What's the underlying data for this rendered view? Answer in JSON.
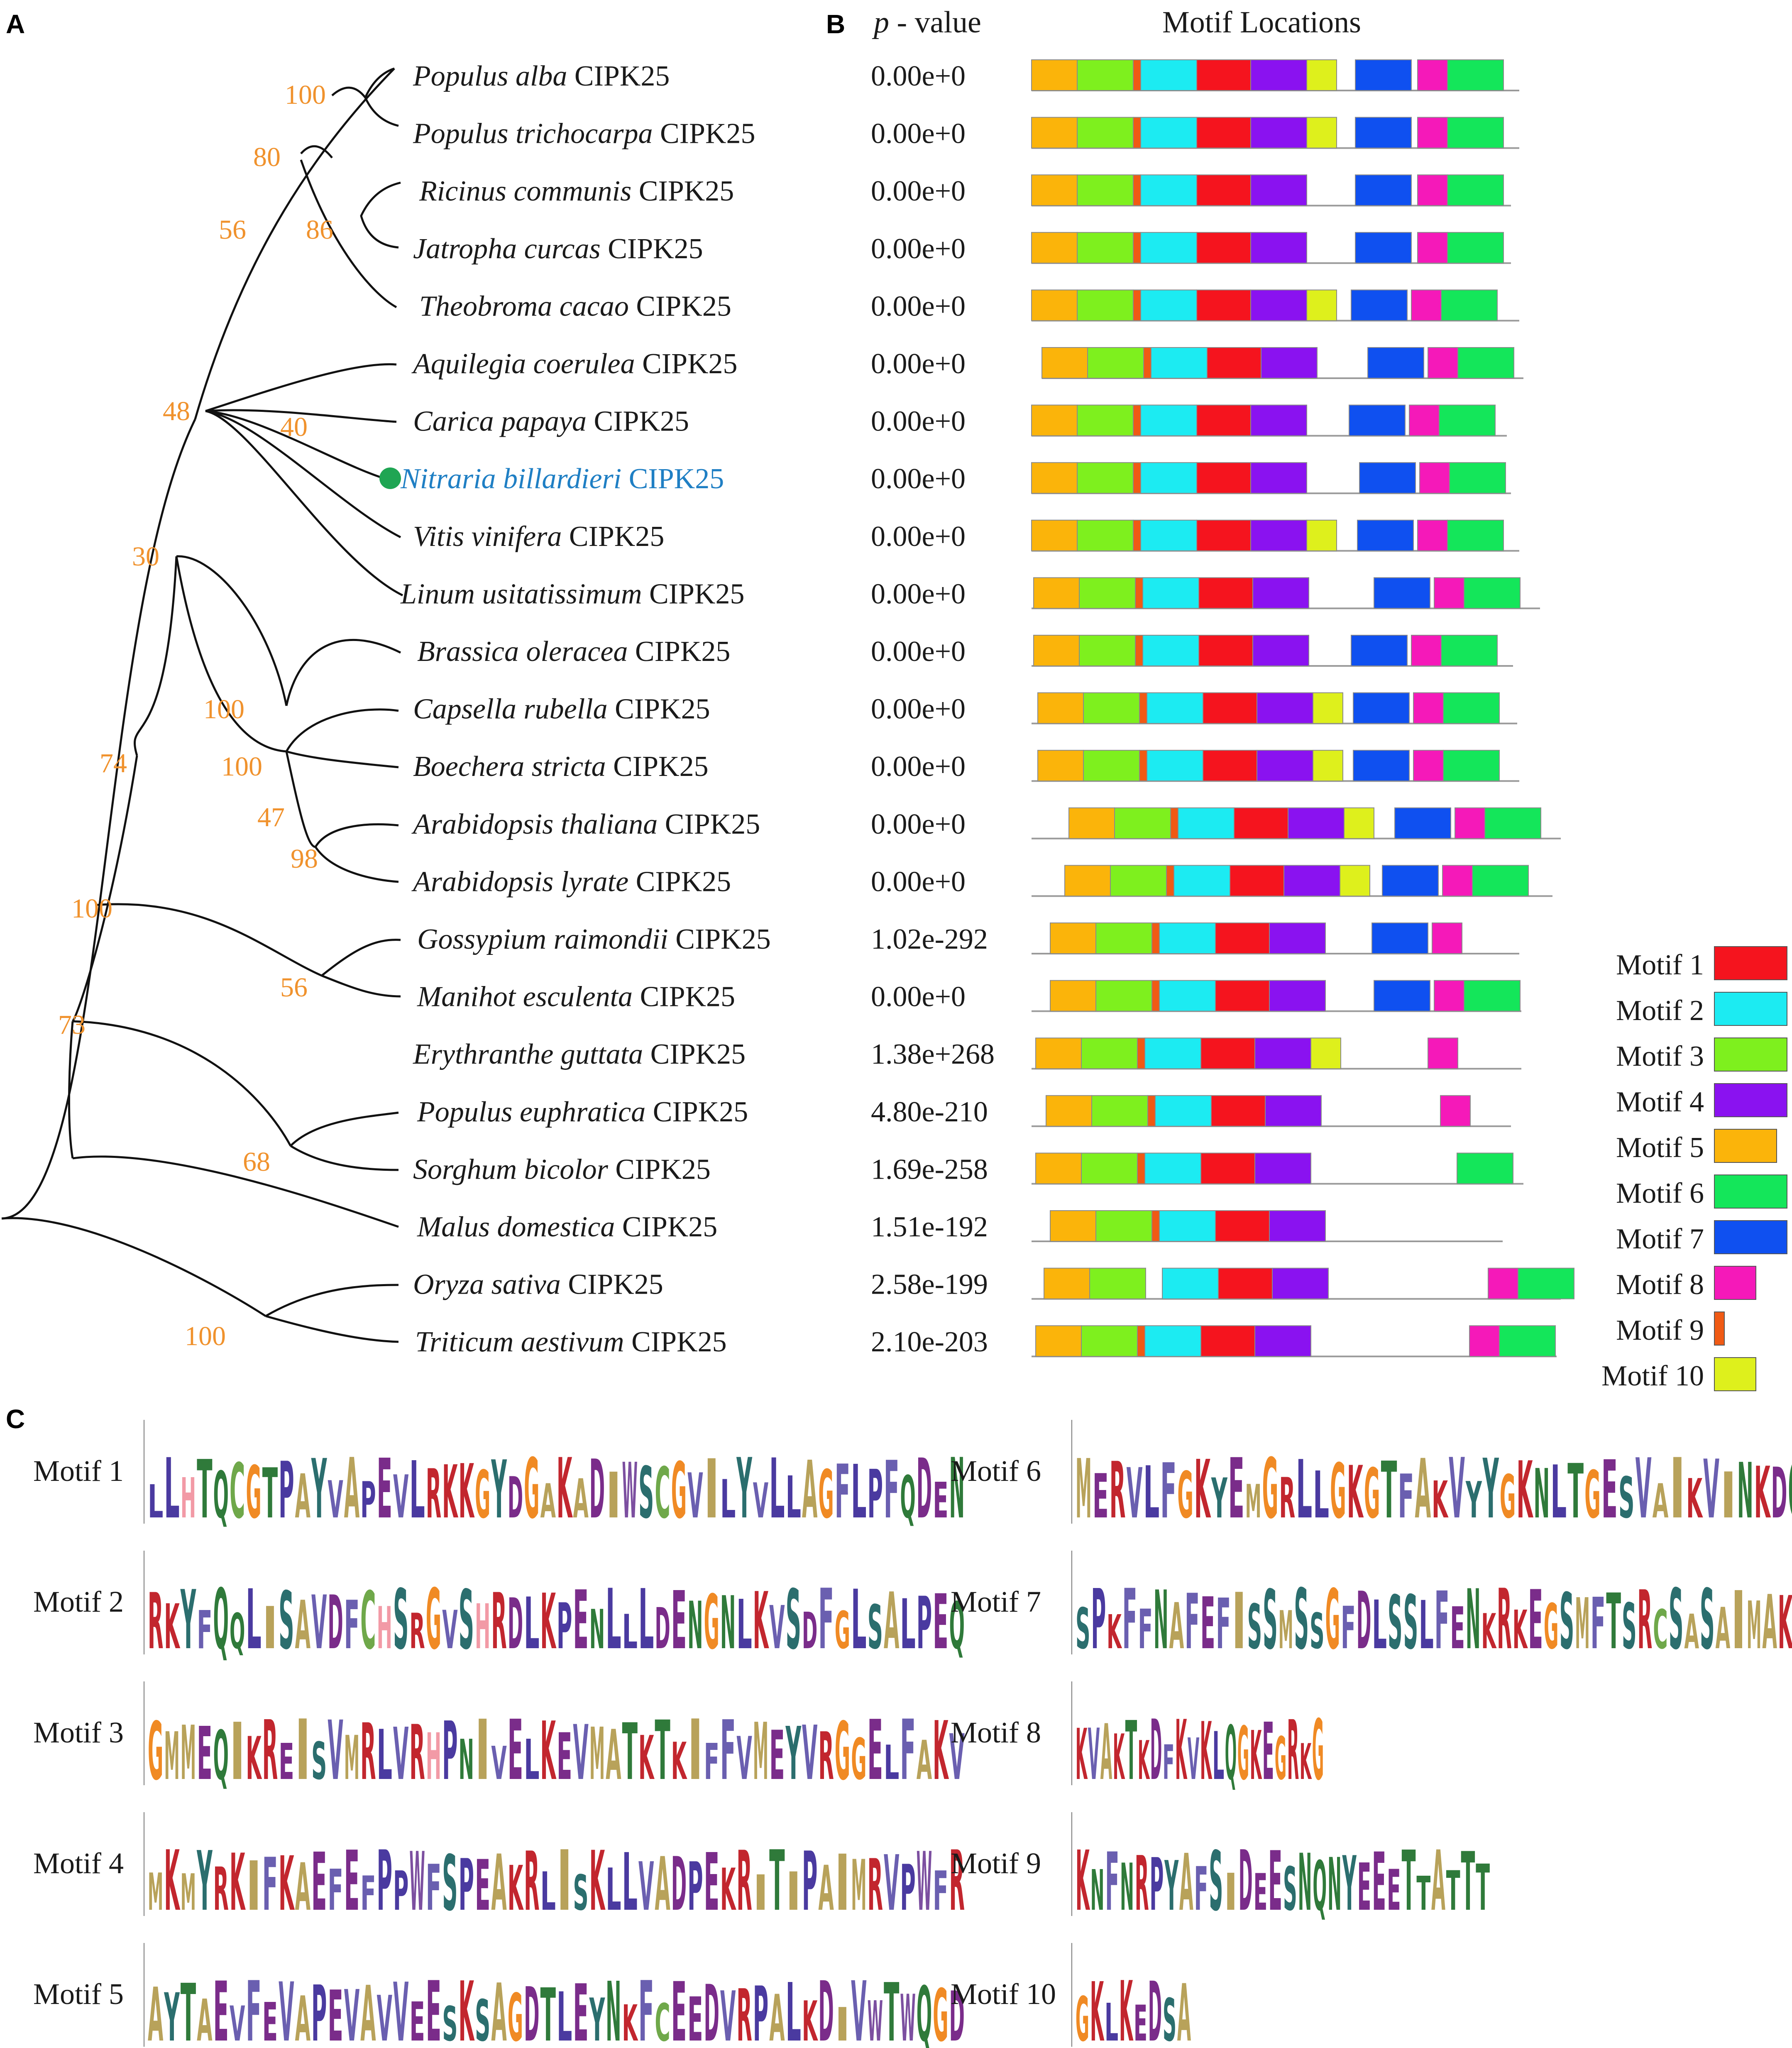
{
  "panels": {
    "a": "A",
    "b": "B",
    "c": "C"
  },
  "header": {
    "pvalue_p": "p",
    "pvalue_rest": " - value",
    "motif_locations": "Motif Locations"
  },
  "species": [
    {
      "genus": "Populus alba",
      "gene": "CIPK25",
      "pvalue": "0.00e+0"
    },
    {
      "genus": "Populus trichocarpa",
      "gene": "CIPK25",
      "pvalue": "0.00e+0"
    },
    {
      "genus": "Ricinus communis",
      "gene": "CIPK25",
      "pvalue": "0.00e+0"
    },
    {
      "genus": "Jatropha curcas",
      "gene": "CIPK25",
      "pvalue": "0.00e+0"
    },
    {
      "genus": "Theobroma cacao",
      "gene": "CIPK25",
      "pvalue": "0.00e+0"
    },
    {
      "genus": "Aquilegia coerulea",
      "gene": "CIPK25",
      "pvalue": "0.00e+0"
    },
    {
      "genus": "Carica papaya",
      "gene": "CIPK25",
      "pvalue": "0.00e+0"
    },
    {
      "genus": "Nitraria billardieri",
      "gene": "CIPK25",
      "pvalue": "0.00e+0",
      "highlight": true
    },
    {
      "genus": "Vitis vinifera",
      "gene": "CIPK25",
      "pvalue": "0.00e+0"
    },
    {
      "genus": "Linum usitatissimum",
      "gene": "CIPK25",
      "pvalue": "0.00e+0"
    },
    {
      "genus": "Brassica oleracea",
      "gene": "CIPK25",
      "pvalue": "0.00e+0"
    },
    {
      "genus": "Capsella rubella",
      "gene": "CIPK25",
      "pvalue": "0.00e+0"
    },
    {
      "genus": "Boechera stricta",
      "gene": "CIPK25",
      "pvalue": "0.00e+0"
    },
    {
      "genus": "Arabidopsis thaliana",
      "gene": "CIPK25",
      "pvalue": "0.00e+0"
    },
    {
      "genus": "Arabidopsis lyrate",
      "gene": "CIPK25",
      "pvalue": "0.00e+0"
    },
    {
      "genus": "Gossypium raimondii",
      "gene": "CIPK25",
      "pvalue": "1.02e-292"
    },
    {
      "genus": "Manihot esculenta",
      "gene": "CIPK25",
      "pvalue": "0.00e+0"
    },
    {
      "genus": "Erythranthe guttata",
      "gene": "CIPK25",
      "pvalue": "1.38e+268"
    },
    {
      "genus": "Populus euphratica",
      "gene": "CIPK25",
      "pvalue": "4.80e-210"
    },
    {
      "genus": "Sorghum bicolor",
      "gene": "CIPK25",
      "pvalue": "1.69e-258"
    },
    {
      "genus": "Malus domestica",
      "gene": "CIPK25",
      "pvalue": "1.51e-192"
    },
    {
      "genus": "Oryza sativa",
      "gene": "CIPK25",
      "pvalue": "2.58e-199"
    },
    {
      "genus": "Triticum aestivum",
      "gene": "CIPK25",
      "pvalue": "2.10e-203"
    }
  ],
  "bootstrap": [
    "100",
    "80",
    "86",
    "56",
    "48",
    "40",
    "30",
    "100",
    "100",
    "47",
    "98",
    "74",
    "100",
    "56",
    "73",
    "68",
    "100"
  ],
  "motif_legend": [
    {
      "label": "Motif 1",
      "color": "#f5141e"
    },
    {
      "label": "Motif 2",
      "color": "#1cebf2"
    },
    {
      "label": "Motif 3",
      "color": "#7ef01e"
    },
    {
      "label": "Motif 4",
      "color": "#8a12f0"
    },
    {
      "label": "Motif 5",
      "color": "#fbb40a"
    },
    {
      "label": "Motif 6",
      "color": "#14e65a"
    },
    {
      "label": "Motif 7",
      "color": "#0f50f0"
    },
    {
      "label": "Motif 8",
      "color": "#f519b9"
    },
    {
      "label": "Motif 9",
      "color": "#f05a14"
    },
    {
      "label": "Motif 10",
      "color": "#def01c"
    }
  ],
  "motif_logos": [
    {
      "label": "Motif 1",
      "sequence": "LLHTQCGTPAYVAPEVLRKKGYDGAKADIWSCGVILYVLLAGFLPFQDEN"
    },
    {
      "label": "Motif 2",
      "sequence": "RKYFQQLISAVDFCHSRGVSHRDLKPENLLLDENGNLKVSDFGLSALPEQ"
    },
    {
      "label": "Motif 3",
      "sequence": "GMMEQIKREISVMRLVRHPNIVELKEVMATKTKIFFVMEYVRGGELFAKV"
    },
    {
      "label": "Motif 4",
      "sequence": "MKMYRKIFKAEFEFPPWFSPEAKRLISKLLVADPEKRITIPAIMRVPWFR"
    },
    {
      "label": "Motif 5",
      "sequence": "AYTAEVFEVAPEVAVVEESKSAGDTLEYNKFCEEDVRPALKDIVWTWQGD"
    },
    {
      "label": "Motif 6",
      "sequence": "MERVLFGKYEMGRLLGKGTFAKVYYGKNLTGESVAIKVINKDQVKK"
    },
    {
      "label": "Motif 7",
      "sequence": "SPKFFNAFEFISSMSSGFDLSSLFENKRKEGSMFTSRCSASAIMAKLEGY"
    },
    {
      "label": "Motif 8",
      "sequence": "KVAKTKDFKVKLQGKEGRKG"
    },
    {
      "label": "Motif 9",
      "sequence": "KNFNRPYAFSIDEESNQNYEEETTATTT"
    },
    {
      "label": "Motif 10",
      "sequence": "GKLKEDSA"
    }
  ],
  "chart_data": {
    "type": "table",
    "title": "Motif Locations",
    "description_fields": [
      "species",
      "pvalue",
      "motifs"
    ],
    "motif_rows": [
      {
        "species": "Populus alba CIPK25",
        "motifs": [
          5,
          3,
          9,
          2,
          1,
          4,
          10,
          7,
          8,
          6
        ]
      },
      {
        "species": "Populus trichocarpa CIPK25",
        "motifs": [
          5,
          3,
          9,
          2,
          1,
          4,
          10,
          7,
          8,
          6
        ]
      },
      {
        "species": "Ricinus communis CIPK25",
        "motifs": [
          5,
          3,
          9,
          2,
          1,
          4,
          7,
          8,
          6
        ]
      },
      {
        "species": "Jatropha curcas CIPK25",
        "motifs": [
          5,
          3,
          9,
          2,
          1,
          4,
          7,
          8,
          6
        ]
      },
      {
        "species": "Theobroma cacao CIPK25",
        "motifs": [
          5,
          3,
          9,
          2,
          1,
          4,
          10,
          7,
          8,
          6
        ]
      },
      {
        "species": "Aquilegia coerulea CIPK25",
        "motifs": [
          5,
          3,
          9,
          2,
          1,
          4,
          7,
          8,
          6
        ]
      },
      {
        "species": "Carica papaya CIPK25",
        "motifs": [
          5,
          3,
          9,
          2,
          1,
          4,
          7,
          8,
          6
        ]
      },
      {
        "species": "Nitraria billardieri CIPK25",
        "motifs": [
          5,
          3,
          9,
          2,
          1,
          4,
          7,
          8,
          6
        ]
      },
      {
        "species": "Vitis vinifera CIPK25",
        "motifs": [
          5,
          3,
          9,
          2,
          1,
          4,
          10,
          7,
          8,
          6
        ]
      },
      {
        "species": "Linum usitatissimum CIPK25",
        "motifs": [
          5,
          3,
          9,
          2,
          1,
          4,
          7,
          8,
          6
        ]
      },
      {
        "species": "Brassica oleracea CIPK25",
        "motifs": [
          5,
          3,
          9,
          2,
          1,
          4,
          7,
          8,
          6
        ]
      },
      {
        "species": "Capsella rubella CIPK25",
        "motifs": [
          5,
          3,
          9,
          2,
          1,
          4,
          10,
          7,
          8,
          6
        ]
      },
      {
        "species": "Boechera stricta CIPK25",
        "motifs": [
          5,
          3,
          9,
          2,
          1,
          4,
          10,
          7,
          8,
          6
        ]
      },
      {
        "species": "Arabidopsis thaliana CIPK25",
        "motifs": [
          5,
          3,
          9,
          2,
          1,
          4,
          10,
          7,
          8,
          6
        ]
      },
      {
        "species": "Arabidopsis lyrate CIPK25",
        "motifs": [
          5,
          3,
          9,
          2,
          1,
          4,
          10,
          7,
          8,
          6
        ]
      },
      {
        "species": "Gossypium raimondii CIPK25",
        "motifs": [
          5,
          3,
          9,
          2,
          1,
          4,
          7,
          8
        ]
      },
      {
        "species": "Manihot esculenta CIPK25",
        "motifs": [
          5,
          3,
          9,
          2,
          1,
          4,
          7,
          8,
          6
        ]
      },
      {
        "species": "Erythranthe guttata CIPK25",
        "motifs": [
          5,
          3,
          9,
          2,
          1,
          4,
          10,
          8
        ]
      },
      {
        "species": "Populus euphratica CIPK25",
        "motifs": [
          5,
          3,
          9,
          2,
          1,
          4,
          8
        ]
      },
      {
        "species": "Sorghum bicolor CIPK25",
        "motifs": [
          5,
          3,
          9,
          2,
          1,
          4,
          6
        ]
      },
      {
        "species": "Malus domestica CIPK25",
        "motifs": [
          5,
          3,
          9,
          2,
          1,
          4
        ]
      },
      {
        "species": "Oryza sativa CIPK25",
        "motifs": [
          5,
          3,
          2,
          1,
          4,
          8,
          6
        ]
      },
      {
        "species": "Triticum aestivum CIPK25",
        "motifs": [
          5,
          3,
          9,
          2,
          1,
          4,
          8,
          6
        ]
      }
    ]
  }
}
